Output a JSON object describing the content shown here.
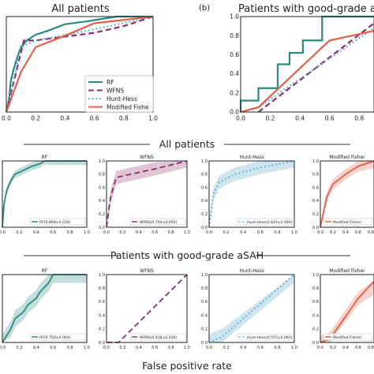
{
  "figure": {
    "panel_b_letter": "(b)",
    "section_all": "All patients",
    "section_good": "Patients with good-grade aSAH",
    "xlabel_bottom": "False positive rate"
  },
  "colors": {
    "RF": "#2a8a7e",
    "WFNS": "#8e2f6d",
    "Hunt-Hess": "#4fa3c9",
    "Modified Fisher": "#e0604a"
  },
  "chart_data": [
    {
      "type": "line",
      "title": "All patients",
      "xlim": [
        0,
        1
      ],
      "ylim": [
        0,
        1
      ],
      "x_ticks": [
        "0.0",
        "0.2",
        "0.4",
        "0.6",
        "0.8",
        "1.0"
      ],
      "y_ticks": [],
      "legend": "bottom-right",
      "grid": false,
      "series": [
        {
          "name": "RF",
          "style": "solid",
          "x": [
            0,
            0.02,
            0.03,
            0.05,
            0.07,
            0.1,
            0.14,
            0.2,
            0.28,
            0.4,
            0.55,
            0.75,
            1.0
          ],
          "y": [
            0,
            0.15,
            0.32,
            0.45,
            0.55,
            0.68,
            0.75,
            0.81,
            0.85,
            0.92,
            0.95,
            1.0,
            1.0
          ]
        },
        {
          "name": "WFNS",
          "style": "dashed",
          "x": [
            0,
            0.12,
            0.2,
            0.4,
            0.6,
            0.8,
            1.0
          ],
          "y": [
            0,
            0.75,
            0.75,
            0.79,
            0.83,
            0.9,
            1.0
          ]
        },
        {
          "name": "Hunt-Hess",
          "style": "dotted",
          "x": [
            0,
            0.1,
            0.2,
            0.45,
            0.7,
            1.0
          ],
          "y": [
            0,
            0.68,
            0.75,
            0.82,
            0.9,
            1.0
          ]
        },
        {
          "name": "Modified Fishe",
          "style": "solid",
          "x": [
            0,
            0.1,
            0.2,
            0.4,
            0.6,
            1.0
          ],
          "y": [
            0,
            0.42,
            0.68,
            0.8,
            0.93,
            1.0
          ]
        }
      ]
    },
    {
      "type": "line",
      "title": "Patients with good-grade aSAH",
      "xlim": [
        0,
        0.9
      ],
      "ylim": [
        0,
        1
      ],
      "x_ticks": [
        "0.0",
        "0.2",
        "0.4",
        "0.6",
        "0.8"
      ],
      "y_ticks": [
        "0.0",
        "0.2",
        "0.4",
        "0.6",
        "0.8",
        "1.0"
      ],
      "grid": false,
      "series": [
        {
          "name": "RF",
          "style": "solid",
          "x": [
            0,
            0,
            0.12,
            0.12,
            0.25,
            0.25,
            0.33,
            0.33,
            0.42,
            0.42,
            0.55,
            0.55,
            0.9
          ],
          "y": [
            0,
            0.12,
            0.12,
            0.25,
            0.25,
            0.5,
            0.5,
            0.62,
            0.62,
            0.75,
            0.75,
            1.0,
            1.0
          ]
        },
        {
          "name": "WFNS",
          "style": "dashed",
          "x": [
            0.12,
            0.9
          ],
          "y": [
            0,
            0.93
          ]
        },
        {
          "name": "Hunt-Hess",
          "style": "dotted",
          "x": [
            0,
            0.12,
            0.9
          ],
          "y": [
            0,
            0.05,
            0.88
          ]
        },
        {
          "name": "Modified Fisher",
          "style": "solid",
          "x": [
            0,
            0.12,
            0.6,
            0.9
          ],
          "y": [
            0,
            0.05,
            0.75,
            0.85
          ]
        }
      ]
    },
    {
      "type": "line",
      "title": "RF",
      "group": "All patients",
      "band": true,
      "x_ticks": [
        "0.0",
        "0.2",
        "0.4",
        "0.6",
        "0.8",
        "1.0"
      ],
      "y_ticks": [],
      "legend_text": "RF(0.869±0.036)",
      "series": [
        {
          "name": "RF",
          "x": [
            0,
            0.02,
            0.05,
            0.1,
            0.15,
            0.25,
            0.35,
            0.45,
            0.5,
            1.0
          ],
          "y": [
            0,
            0.35,
            0.55,
            0.7,
            0.8,
            0.86,
            0.92,
            0.96,
            1.0,
            1.0
          ],
          "band": 0.06
        }
      ]
    },
    {
      "type": "line",
      "title": "WFNS",
      "group": "All patients",
      "band": true,
      "x_ticks": [
        "0.0",
        "0.2",
        "0.4",
        "0.6",
        "0.8",
        "1.0"
      ],
      "y_ticks": [
        "0.0",
        "0.2",
        "0.4",
        "0.6",
        "0.8",
        "1.0"
      ],
      "legend_text": "WFNS(0.794±0.050)",
      "series": [
        {
          "name": "WFNS",
          "x": [
            0,
            0.05,
            0.12,
            0.3,
            0.6,
            1.0
          ],
          "y": [
            0,
            0.45,
            0.75,
            0.8,
            0.88,
            1.0
          ],
          "band": 0.1
        }
      ]
    },
    {
      "type": "line",
      "title": "Hunt-Hess",
      "group": "All patients",
      "band": true,
      "x_ticks": [
        "0.0",
        "0.2",
        "0.4",
        "0.6",
        "0.8",
        "1.0"
      ],
      "y_ticks": [
        "0.0",
        "0.2",
        "0.4",
        "0.6",
        "0.8",
        "1.0"
      ],
      "legend_text": "Hunt-Hess(0.824±0.046)",
      "series": [
        {
          "name": "Hunt-Hess",
          "x": [
            0,
            0.05,
            0.12,
            0.3,
            0.6,
            1.0
          ],
          "y": [
            0,
            0.5,
            0.68,
            0.8,
            0.9,
            1.0
          ],
          "band": 0.1
        }
      ]
    },
    {
      "type": "line",
      "title": "Modified Fisher",
      "group": "All patients",
      "band": true,
      "x_ticks": [
        "0.0",
        "0.2",
        "0.4",
        "0.6",
        "0.8"
      ],
      "y_ticks": [
        "0.0",
        "0.2",
        "0.4",
        "0.6",
        "0.8",
        "1.0"
      ],
      "legend_text": "Modified Fisher(",
      "series": [
        {
          "name": "Modified Fisher",
          "x": [
            0,
            0.1,
            0.2,
            0.4,
            0.6,
            1.0
          ],
          "y": [
            0,
            0.45,
            0.65,
            0.8,
            0.92,
            1.0
          ],
          "band": 0.08
        }
      ]
    },
    {
      "type": "line",
      "title": "RF",
      "group": "Patients with good-grade aSAH",
      "band": true,
      "x_ticks": [
        "0.0",
        "0.2",
        "0.4",
        "0.6",
        "0.8",
        "1.0"
      ],
      "y_ticks": [],
      "legend_text": "RF(0.750±0.064)",
      "series": [
        {
          "name": "RF",
          "x": [
            0,
            0.1,
            0.15,
            0.25,
            0.3,
            0.4,
            0.45,
            0.55,
            0.6,
            1.0
          ],
          "y": [
            0,
            0.2,
            0.35,
            0.45,
            0.55,
            0.65,
            0.75,
            0.88,
            1.0,
            1.0
          ],
          "band": 0.12
        }
      ]
    },
    {
      "type": "line",
      "title": "WFNS",
      "group": "Patients with good-grade aSAH",
      "band": true,
      "x_ticks": [
        "0.0",
        "0.2",
        "0.4",
        "0.6",
        "0.8",
        "1.0"
      ],
      "y_ticks": [
        "0.0",
        "0.2",
        "0.4",
        "0.6",
        "0.8",
        "1.0"
      ],
      "legend_text": "WFNS(0.428±0.016)",
      "series": [
        {
          "name": "WFNS",
          "x": [
            0,
            0.15,
            1.0
          ],
          "y": [
            0,
            0,
            1.0
          ],
          "band": 0.0
        }
      ]
    },
    {
      "type": "line",
      "title": "Hunt-Hess",
      "group": "Patients with good-grade aSAH",
      "band": true,
      "x_ticks": [
        "0.0",
        "0.2",
        "0.4",
        "0.6",
        "0.8",
        "1.0"
      ],
      "y_ticks": [
        "0.0",
        "0.2",
        "0.4",
        "0.6",
        "0.8",
        "1.0"
      ],
      "legend_text": "Hunt-Hess(0.555±0.081)",
      "series": [
        {
          "name": "Hunt-Hess",
          "x": [
            0,
            0.15,
            1.0
          ],
          "y": [
            0,
            0.08,
            1.0
          ],
          "band": 0.12
        }
      ]
    },
    {
      "type": "line",
      "title": "Modified Fisher",
      "group": "Patients with good-grade aSAH",
      "band": true,
      "x_ticks": [
        "0.0",
        "0.2",
        "0.4",
        "0.6",
        "0.8"
      ],
      "y_ticks": [
        "0.0",
        "0.2",
        "0.4",
        "0.6",
        "0.8",
        "1.0"
      ],
      "legend_text": "Modified Fisher(",
      "series": [
        {
          "name": "Modified Fisher",
          "x": [
            0,
            0.15,
            0.6,
            1.0
          ],
          "y": [
            0,
            0.05,
            0.65,
            0.9
          ],
          "band": 0.1
        }
      ]
    }
  ]
}
